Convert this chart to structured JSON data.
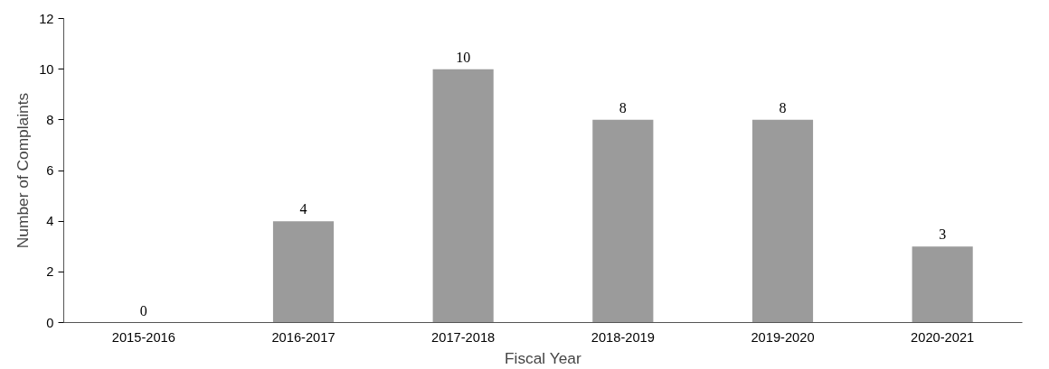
{
  "chart_data": {
    "type": "bar",
    "xlabel": "Fiscal Year",
    "ylabel": "Number of Complaints",
    "categories": [
      "2015-2016",
      "2016-2017",
      "2017-2018",
      "2018-2019",
      "2019-2020",
      "2020-2021"
    ],
    "values": [
      0,
      4,
      10,
      8,
      8,
      3
    ],
    "color": "#9b9b9b",
    "ylim": [
      0,
      12
    ],
    "yticks": [
      0,
      2,
      4,
      6,
      8,
      10,
      12
    ],
    "grid": false,
    "data_labels": true
  }
}
